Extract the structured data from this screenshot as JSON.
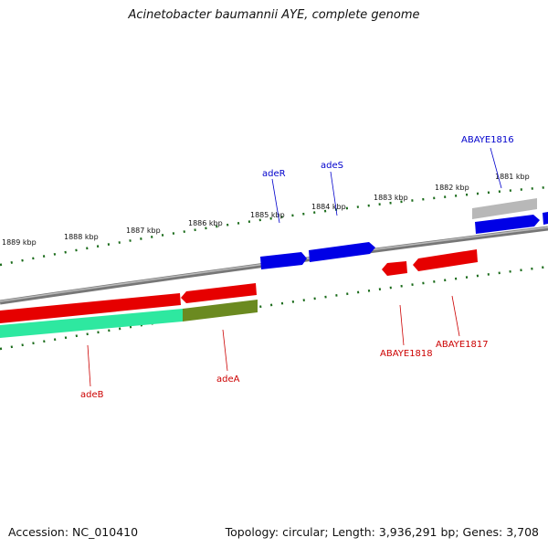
{
  "title": "Acinetobacter baumannii AYE, complete genome",
  "accession": "Accession: NC_010410",
  "summary": "Topology: circular; Length: 3,936,291 bp; Genes: 3,708",
  "kbp_labels": [
    "1889 kbp",
    "1888 kbp",
    "1887 kbp",
    "1886 kbp",
    "1885 kbp",
    "1884 kbp",
    "1883 kbp",
    "1882 kbp",
    "1881 kbp"
  ],
  "genes_top": [
    {
      "label": "adeR",
      "color": "#0000cc"
    },
    {
      "label": "adeS",
      "color": "#0000cc"
    },
    {
      "label": "ABAYE1816",
      "color": "#0000cc"
    }
  ],
  "genes_bottom": [
    {
      "label": "adeB",
      "color": "#cc0000"
    },
    {
      "label": "adeA",
      "color": "#cc0000"
    },
    {
      "label": "ABAYE1818",
      "color": "#cc0000"
    },
    {
      "label": "ABAYE1817",
      "color": "#cc0000"
    }
  ],
  "colors": {
    "forward": "#0000e6",
    "reverse": "#e60000",
    "backbone": "#888888",
    "ticks": "#1a6b1a",
    "feature_green": "#2ee8a0",
    "feature_olive": "#6b8a20",
    "feature_gray": "#b8b8b8"
  }
}
